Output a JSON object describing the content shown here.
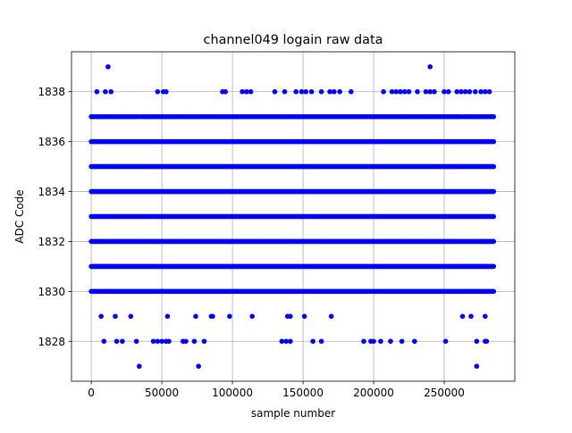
{
  "chart_data": {
    "type": "scatter",
    "title": "channel049 logain raw data",
    "xlabel": "sample number",
    "ylabel": "ADC Code",
    "xlim": [
      -14000,
      300000
    ],
    "ylim": [
      1826.4,
      1839.6
    ],
    "xticks": [
      0,
      50000,
      100000,
      150000,
      200000,
      250000
    ],
    "xtick_labels": [
      "0",
      "50000",
      "100000",
      "150000",
      "200000",
      "250000"
    ],
    "yticks": [
      1828,
      1830,
      1832,
      1834,
      1836,
      1838
    ],
    "ytick_labels": [
      "1828",
      "1830",
      "1832",
      "1834",
      "1836",
      "1838"
    ],
    "grid": true,
    "marker_color": "#0000ff",
    "dense_bands": {
      "y": [
        1830,
        1831,
        1832,
        1833,
        1834,
        1835,
        1836
      ],
      "x_range": [
        0,
        285000
      ]
    },
    "band_1837": {
      "y": 1837,
      "x_range": [
        0,
        285000
      ],
      "gaps": [
        [
          33000,
          36000
        ],
        [
          262000,
          265000
        ]
      ]
    },
    "points": [
      {
        "x": 11900,
        "y": 1839
      },
      {
        "x": 240000,
        "y": 1839
      },
      {
        "x": 4000,
        "y": 1838
      },
      {
        "x": 10000,
        "y": 1838
      },
      {
        "x": 14000,
        "y": 1838
      },
      {
        "x": 47000,
        "y": 1838
      },
      {
        "x": 51000,
        "y": 1838
      },
      {
        "x": 53000,
        "y": 1838
      },
      {
        "x": 93000,
        "y": 1838
      },
      {
        "x": 95000,
        "y": 1838
      },
      {
        "x": 107000,
        "y": 1838
      },
      {
        "x": 110000,
        "y": 1838
      },
      {
        "x": 113000,
        "y": 1838
      },
      {
        "x": 130000,
        "y": 1838
      },
      {
        "x": 137000,
        "y": 1838
      },
      {
        "x": 145000,
        "y": 1838
      },
      {
        "x": 149000,
        "y": 1838
      },
      {
        "x": 152000,
        "y": 1838
      },
      {
        "x": 156000,
        "y": 1838
      },
      {
        "x": 163000,
        "y": 1838
      },
      {
        "x": 169000,
        "y": 1838
      },
      {
        "x": 172000,
        "y": 1838
      },
      {
        "x": 176000,
        "y": 1838
      },
      {
        "x": 184000,
        "y": 1838
      },
      {
        "x": 207000,
        "y": 1838
      },
      {
        "x": 213000,
        "y": 1838
      },
      {
        "x": 216000,
        "y": 1838
      },
      {
        "x": 219000,
        "y": 1838
      },
      {
        "x": 222000,
        "y": 1838
      },
      {
        "x": 225000,
        "y": 1838
      },
      {
        "x": 231000,
        "y": 1838
      },
      {
        "x": 237000,
        "y": 1838
      },
      {
        "x": 240000,
        "y": 1838
      },
      {
        "x": 243000,
        "y": 1838
      },
      {
        "x": 250000,
        "y": 1838
      },
      {
        "x": 253000,
        "y": 1838
      },
      {
        "x": 259000,
        "y": 1838
      },
      {
        "x": 262000,
        "y": 1838
      },
      {
        "x": 265000,
        "y": 1838
      },
      {
        "x": 268000,
        "y": 1838
      },
      {
        "x": 272000,
        "y": 1838
      },
      {
        "x": 276000,
        "y": 1838
      },
      {
        "x": 279000,
        "y": 1838
      },
      {
        "x": 282000,
        "y": 1838
      },
      {
        "x": 7000,
        "y": 1829
      },
      {
        "x": 17000,
        "y": 1829
      },
      {
        "x": 28000,
        "y": 1829
      },
      {
        "x": 54000,
        "y": 1829
      },
      {
        "x": 74000,
        "y": 1829
      },
      {
        "x": 85000,
        "y": 1829
      },
      {
        "x": 86000,
        "y": 1829
      },
      {
        "x": 98000,
        "y": 1829
      },
      {
        "x": 114000,
        "y": 1829
      },
      {
        "x": 139000,
        "y": 1829
      },
      {
        "x": 141000,
        "y": 1829
      },
      {
        "x": 151000,
        "y": 1829
      },
      {
        "x": 170000,
        "y": 1829
      },
      {
        "x": 263000,
        "y": 1829
      },
      {
        "x": 269000,
        "y": 1829
      },
      {
        "x": 279000,
        "y": 1829
      },
      {
        "x": 9000,
        "y": 1828
      },
      {
        "x": 18000,
        "y": 1828
      },
      {
        "x": 22000,
        "y": 1828
      },
      {
        "x": 32000,
        "y": 1828
      },
      {
        "x": 44000,
        "y": 1828
      },
      {
        "x": 47000,
        "y": 1828
      },
      {
        "x": 50000,
        "y": 1828
      },
      {
        "x": 53000,
        "y": 1828
      },
      {
        "x": 55000,
        "y": 1828
      },
      {
        "x": 65000,
        "y": 1828
      },
      {
        "x": 67000,
        "y": 1828
      },
      {
        "x": 73000,
        "y": 1828
      },
      {
        "x": 80000,
        "y": 1828
      },
      {
        "x": 135000,
        "y": 1828
      },
      {
        "x": 138000,
        "y": 1828
      },
      {
        "x": 141000,
        "y": 1828
      },
      {
        "x": 157000,
        "y": 1828
      },
      {
        "x": 163000,
        "y": 1828
      },
      {
        "x": 193000,
        "y": 1828
      },
      {
        "x": 198000,
        "y": 1828
      },
      {
        "x": 200000,
        "y": 1828
      },
      {
        "x": 205000,
        "y": 1828
      },
      {
        "x": 212000,
        "y": 1828
      },
      {
        "x": 220000,
        "y": 1828
      },
      {
        "x": 229000,
        "y": 1828
      },
      {
        "x": 251000,
        "y": 1828
      },
      {
        "x": 273000,
        "y": 1828
      },
      {
        "x": 279000,
        "y": 1828
      },
      {
        "x": 280000,
        "y": 1828
      },
      {
        "x": 34000,
        "y": 1827
      },
      {
        "x": 76000,
        "y": 1827
      },
      {
        "x": 273000,
        "y": 1827
      }
    ]
  }
}
